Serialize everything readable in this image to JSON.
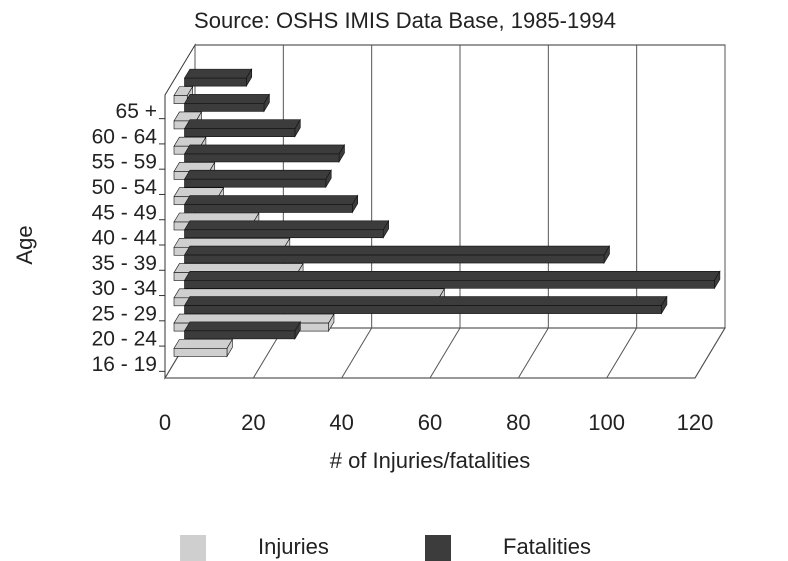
{
  "chart_data": {
    "type": "bar3d",
    "orientation": "horizontal",
    "title": "Source: OSHS IMIS Data Base, 1985-1994",
    "x_label": "# of Injuries/fatalities",
    "y_label": "Age",
    "categories": [
      "16 - 19",
      "20 - 24",
      "25 - 29",
      "30 - 34",
      "35 - 39",
      "40 - 44",
      "45 - 49",
      "50 - 54",
      "55 - 59",
      "60 - 64",
      "65 +"
    ],
    "series": [
      {
        "name": "Injuries",
        "color": "#cfcfcf",
        "values": [
          12,
          35,
          60,
          28,
          25,
          18,
          10,
          8,
          6,
          5,
          3
        ]
      },
      {
        "name": "Fatalities",
        "color": "#3c3c3c",
        "values": [
          25,
          108,
          120,
          95,
          45,
          38,
          32,
          35,
          25,
          18,
          14
        ]
      }
    ],
    "xlim": [
      0,
      120
    ],
    "xticks": [
      0,
      20,
      40,
      60,
      80,
      100,
      120
    ],
    "grid": true,
    "legend": "bottom"
  }
}
